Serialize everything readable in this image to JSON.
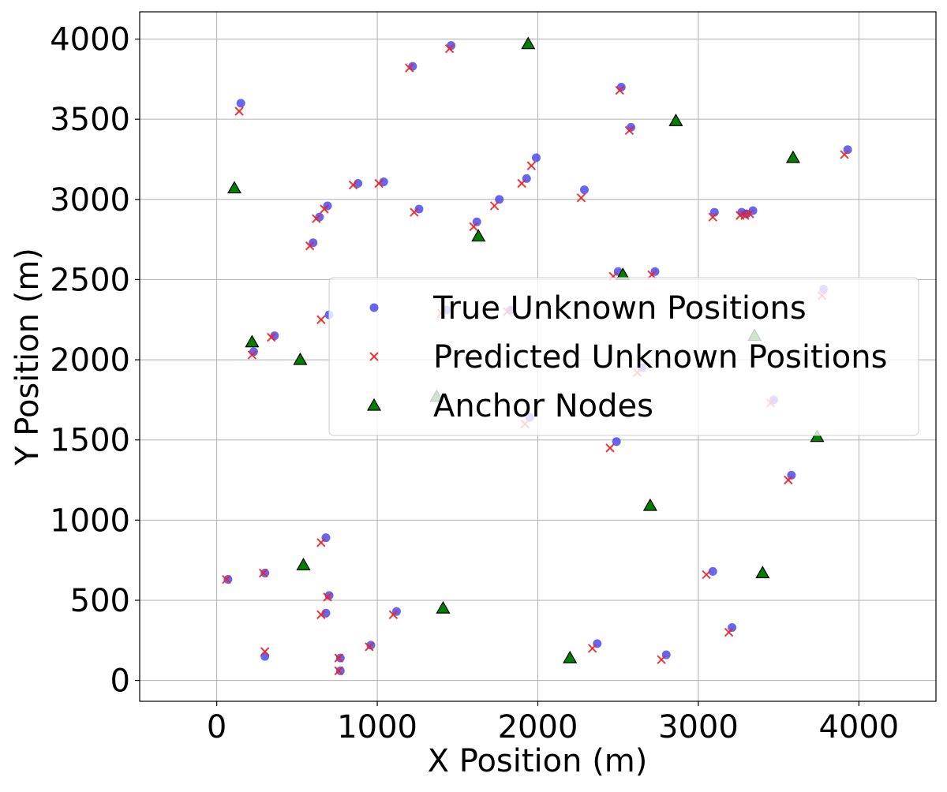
{
  "chart_data": {
    "type": "scatter",
    "title": "",
    "xlabel": "X Position (m)",
    "ylabel": "Y Position (m)",
    "xlim": [
      -480,
      4480
    ],
    "ylim": [
      -130,
      4170
    ],
    "xticks": [
      0,
      1000,
      2000,
      3000,
      4000
    ],
    "yticks": [
      0,
      500,
      1000,
      1500,
      2000,
      2500,
      3000,
      3500,
      4000
    ],
    "grid": true,
    "legend_position": "center-right",
    "series": [
      {
        "name": "True Unknown Positions",
        "marker": "circle",
        "color": "#4040ee",
        "points": [
          [
            150,
            3600
          ],
          [
            1220,
            3830
          ],
          [
            1460,
            3960
          ],
          [
            2520,
            3700
          ],
          [
            2580,
            3450
          ],
          [
            3930,
            3310
          ],
          [
            1990,
            3260
          ],
          [
            1930,
            3130
          ],
          [
            1040,
            3110
          ],
          [
            880,
            3100
          ],
          [
            2290,
            3060
          ],
          [
            690,
            2960
          ],
          [
            1260,
            2940
          ],
          [
            640,
            2890
          ],
          [
            1760,
            3000
          ],
          [
            1620,
            2860
          ],
          [
            3100,
            2920
          ],
          [
            3270,
            2920
          ],
          [
            3300,
            2910
          ],
          [
            3340,
            2930
          ],
          [
            600,
            2730
          ],
          [
            2500,
            2550
          ],
          [
            2730,
            2550
          ],
          [
            3780,
            2440
          ],
          [
            700,
            2280
          ],
          [
            1430,
            2310
          ],
          [
            1830,
            2310
          ],
          [
            360,
            2150
          ],
          [
            230,
            2050
          ],
          [
            2650,
            1950
          ],
          [
            3470,
            1750
          ],
          [
            1950,
            1640
          ],
          [
            2490,
            1490
          ],
          [
            3580,
            1280
          ],
          [
            680,
            890
          ],
          [
            70,
            630
          ],
          [
            300,
            670
          ],
          [
            700,
            530
          ],
          [
            680,
            420
          ],
          [
            1120,
            430
          ],
          [
            960,
            220
          ],
          [
            770,
            140
          ],
          [
            770,
            60
          ],
          [
            300,
            150
          ],
          [
            2370,
            230
          ],
          [
            2800,
            160
          ],
          [
            3210,
            330
          ],
          [
            3090,
            680
          ]
        ]
      },
      {
        "name": "Predicted Unknown Positions",
        "marker": "x",
        "color": "#ee2222",
        "points": [
          [
            140,
            3550
          ],
          [
            1200,
            3820
          ],
          [
            1450,
            3940
          ],
          [
            2510,
            3680
          ],
          [
            2570,
            3430
          ],
          [
            3910,
            3280
          ],
          [
            1960,
            3210
          ],
          [
            1900,
            3100
          ],
          [
            1010,
            3100
          ],
          [
            850,
            3090
          ],
          [
            2270,
            3010
          ],
          [
            670,
            2940
          ],
          [
            1230,
            2920
          ],
          [
            620,
            2880
          ],
          [
            1730,
            2960
          ],
          [
            1600,
            2830
          ],
          [
            3090,
            2890
          ],
          [
            3260,
            2900
          ],
          [
            3290,
            2900
          ],
          [
            3320,
            2910
          ],
          [
            580,
            2710
          ],
          [
            2470,
            2520
          ],
          [
            2710,
            2530
          ],
          [
            3770,
            2400
          ],
          [
            650,
            2250
          ],
          [
            1400,
            2290
          ],
          [
            1810,
            2300
          ],
          [
            340,
            2140
          ],
          [
            220,
            2030
          ],
          [
            2620,
            1920
          ],
          [
            3450,
            1730
          ],
          [
            1920,
            1600
          ],
          [
            2450,
            1450
          ],
          [
            3560,
            1250
          ],
          [
            650,
            860
          ],
          [
            60,
            630
          ],
          [
            290,
            670
          ],
          [
            690,
            520
          ],
          [
            650,
            410
          ],
          [
            1100,
            410
          ],
          [
            950,
            210
          ],
          [
            760,
            140
          ],
          [
            760,
            60
          ],
          [
            300,
            180
          ],
          [
            2340,
            200
          ],
          [
            2770,
            130
          ],
          [
            3190,
            300
          ],
          [
            3050,
            660
          ]
        ]
      },
      {
        "name": "Anchor Nodes",
        "marker": "triangle",
        "color": "#008000",
        "points": [
          [
            1940,
            3970
          ],
          [
            2860,
            3490
          ],
          [
            3590,
            3260
          ],
          [
            110,
            3070
          ],
          [
            1630,
            2770
          ],
          [
            2530,
            2530
          ],
          [
            3350,
            2150
          ],
          [
            220,
            2110
          ],
          [
            520,
            2000
          ],
          [
            1370,
            1770
          ],
          [
            3740,
            1520
          ],
          [
            2700,
            1090
          ],
          [
            540,
            720
          ],
          [
            3400,
            670
          ],
          [
            1410,
            450
          ],
          [
            2200,
            140
          ]
        ]
      }
    ]
  }
}
